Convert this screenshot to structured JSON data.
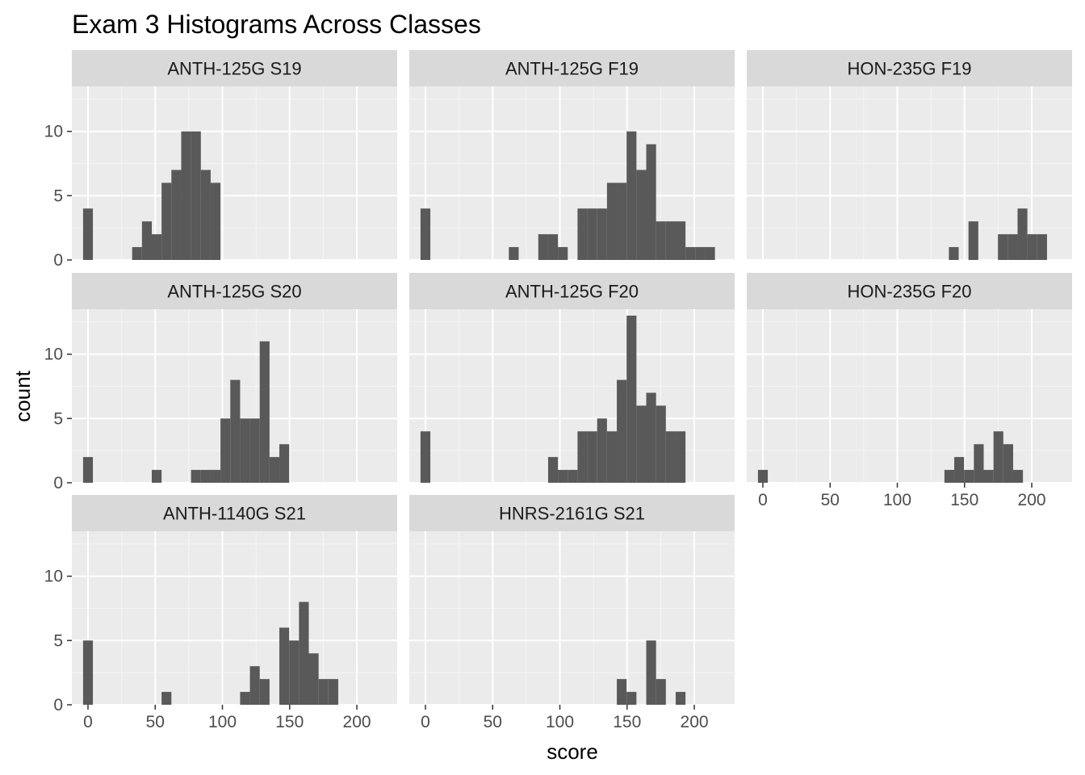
{
  "chart_data": {
    "type": "bar",
    "subtype": "faceted histogram",
    "title": "Exam 3 Histograms Across Classes",
    "xlabel": "score",
    "ylabel": "count",
    "xlim": [
      -12,
      230
    ],
    "ylim": [
      0,
      13.5
    ],
    "x_ticks": [
      0,
      50,
      100,
      150,
      200
    ],
    "y_ticks": [
      0,
      5,
      10
    ],
    "bin_width": 7.3,
    "bar_color": "#595959",
    "panel_background": "#ebebeb",
    "strip_background": "#d9d9d9",
    "grid": true,
    "facets": [
      {
        "name": "ANTH-125G S19",
        "bins": [
          {
            "x": 0,
            "count": 4
          },
          {
            "x": 36.5,
            "count": 1
          },
          {
            "x": 43.8,
            "count": 3
          },
          {
            "x": 51.1,
            "count": 2
          },
          {
            "x": 58.4,
            "count": 6
          },
          {
            "x": 65.7,
            "count": 7
          },
          {
            "x": 73,
            "count": 10
          },
          {
            "x": 80.3,
            "count": 10
          },
          {
            "x": 87.6,
            "count": 7
          },
          {
            "x": 94.9,
            "count": 6
          }
        ]
      },
      {
        "name": "ANTH-125G F19",
        "bins": [
          {
            "x": 0,
            "count": 4
          },
          {
            "x": 65.7,
            "count": 1
          },
          {
            "x": 87.6,
            "count": 2
          },
          {
            "x": 94.9,
            "count": 2
          },
          {
            "x": 102.2,
            "count": 1
          },
          {
            "x": 116.8,
            "count": 4
          },
          {
            "x": 124.1,
            "count": 4
          },
          {
            "x": 131.4,
            "count": 4
          },
          {
            "x": 138.7,
            "count": 6
          },
          {
            "x": 146,
            "count": 6
          },
          {
            "x": 153.3,
            "count": 10
          },
          {
            "x": 160.6,
            "count": 7
          },
          {
            "x": 167.9,
            "count": 9
          },
          {
            "x": 175.2,
            "count": 3
          },
          {
            "x": 182.5,
            "count": 3
          },
          {
            "x": 189.8,
            "count": 3
          },
          {
            "x": 197.1,
            "count": 1
          },
          {
            "x": 204.4,
            "count": 1
          },
          {
            "x": 211.7,
            "count": 1
          }
        ]
      },
      {
        "name": "HON-235G F19",
        "bins": [
          {
            "x": 142,
            "count": 1
          },
          {
            "x": 156.6,
            "count": 3
          },
          {
            "x": 178.5,
            "count": 2
          },
          {
            "x": 185.8,
            "count": 2
          },
          {
            "x": 193.1,
            "count": 4
          },
          {
            "x": 200.4,
            "count": 2
          },
          {
            "x": 207.7,
            "count": 2
          }
        ]
      },
      {
        "name": "ANTH-125G S20",
        "bins": [
          {
            "x": 0,
            "count": 2
          },
          {
            "x": 51.1,
            "count": 1
          },
          {
            "x": 80.3,
            "count": 1
          },
          {
            "x": 87.6,
            "count": 1
          },
          {
            "x": 94.9,
            "count": 1
          },
          {
            "x": 102.2,
            "count": 5
          },
          {
            "x": 109.5,
            "count": 8
          },
          {
            "x": 116.8,
            "count": 5
          },
          {
            "x": 124.1,
            "count": 5
          },
          {
            "x": 131.4,
            "count": 11
          },
          {
            "x": 138.7,
            "count": 2
          },
          {
            "x": 146,
            "count": 3
          }
        ]
      },
      {
        "name": "ANTH-125G F20",
        "bins": [
          {
            "x": 0,
            "count": 4
          },
          {
            "x": 94.9,
            "count": 2
          },
          {
            "x": 102.2,
            "count": 1
          },
          {
            "x": 109.5,
            "count": 1
          },
          {
            "x": 116.8,
            "count": 4
          },
          {
            "x": 124.1,
            "count": 4
          },
          {
            "x": 131.4,
            "count": 5
          },
          {
            "x": 138.7,
            "count": 4
          },
          {
            "x": 146,
            "count": 8
          },
          {
            "x": 153.3,
            "count": 13
          },
          {
            "x": 160.6,
            "count": 6
          },
          {
            "x": 167.9,
            "count": 7
          },
          {
            "x": 175.2,
            "count": 6
          },
          {
            "x": 182.5,
            "count": 4
          },
          {
            "x": 189.8,
            "count": 4
          }
        ]
      },
      {
        "name": "HON-235G F20",
        "bins": [
          {
            "x": 0,
            "count": 1
          },
          {
            "x": 138.7,
            "count": 1
          },
          {
            "x": 146,
            "count": 2
          },
          {
            "x": 153.3,
            "count": 1
          },
          {
            "x": 160.6,
            "count": 3
          },
          {
            "x": 167.9,
            "count": 1
          },
          {
            "x": 175.2,
            "count": 4
          },
          {
            "x": 182.5,
            "count": 3
          },
          {
            "x": 189.8,
            "count": 1
          }
        ]
      },
      {
        "name": "ANTH-1140G S21",
        "bins": [
          {
            "x": 0,
            "count": 5
          },
          {
            "x": 58.4,
            "count": 1
          },
          {
            "x": 116.8,
            "count": 1
          },
          {
            "x": 124.1,
            "count": 3
          },
          {
            "x": 131.4,
            "count": 2
          },
          {
            "x": 146,
            "count": 6
          },
          {
            "x": 153.3,
            "count": 5
          },
          {
            "x": 160.6,
            "count": 8
          },
          {
            "x": 167.9,
            "count": 4
          },
          {
            "x": 175.2,
            "count": 2
          },
          {
            "x": 182.5,
            "count": 2
          }
        ]
      },
      {
        "name": "HNRS-2161G S21",
        "bins": [
          {
            "x": 146,
            "count": 2
          },
          {
            "x": 153.3,
            "count": 1
          },
          {
            "x": 167.9,
            "count": 5
          },
          {
            "x": 175.2,
            "count": 2
          },
          {
            "x": 189.8,
            "count": 1
          }
        ]
      }
    ]
  }
}
